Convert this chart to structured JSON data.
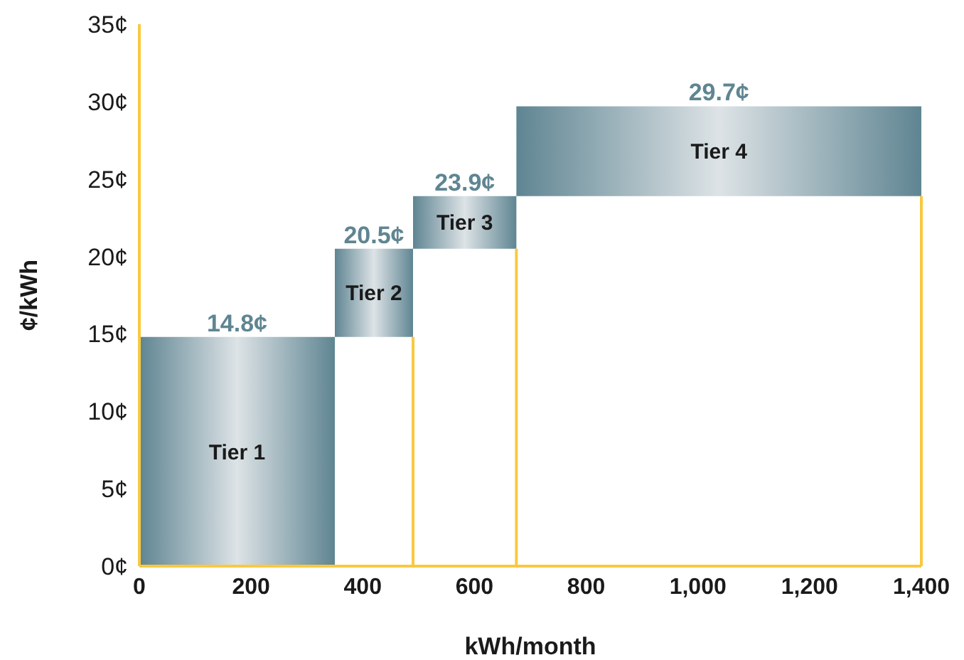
{
  "chart_data": {
    "type": "histogram",
    "xlabel": "kWh/month",
    "ylabel": "¢/kWh",
    "bins": [
      0,
      350,
      490,
      675,
      1400
    ],
    "base": [
      0,
      14.8,
      20.5,
      23.9
    ],
    "values": [
      14.8,
      5.7,
      3.4,
      5.8
    ],
    "value_labels": [
      "14.8¢",
      "20.5¢",
      "23.9¢",
      "29.7¢"
    ],
    "color": "#5f8592",
    "annotations": [
      "Tier 1",
      "Tier 2",
      "Tier 3",
      "Tier 4"
    ],
    "ref_lines": [
      {
        "axis": "x",
        "value": 490,
        "color": "#f8c940"
      },
      {
        "axis": "x",
        "value": 675,
        "color": "#f8c940"
      },
      {
        "axis": "x",
        "value": 1400,
        "color": "#f8c940"
      }
    ],
    "xlim": [
      0,
      1400
    ],
    "xticks": [
      0,
      200,
      400,
      600,
      800,
      {
        "value": 1000,
        "label": "1,000"
      },
      {
        "value": 1200,
        "label": "1,200"
      },
      {
        "value": 1400,
        "label": "1,400"
      }
    ],
    "ylim": [
      0,
      35
    ],
    "yticks": [
      {
        "value": 0,
        "label": "0¢"
      },
      {
        "value": 5,
        "label": "5¢"
      },
      {
        "value": 10,
        "label": "10¢"
      },
      {
        "value": 15,
        "label": "15¢"
      },
      {
        "value": 20,
        "label": "20¢"
      },
      {
        "value": 25,
        "label": "25¢"
      },
      {
        "value": 30,
        "label": "30¢"
      },
      {
        "value": 35,
        "label": "35¢"
      }
    ],
    "grid": false
  }
}
